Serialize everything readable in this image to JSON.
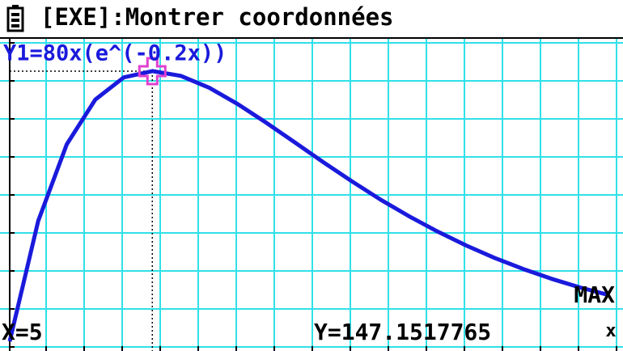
{
  "header": {
    "title": "[EXE]:Montrer coordonnées"
  },
  "chart_data": {
    "type": "line",
    "function_label": "Y1=80x(e^(-0.2x))",
    "mode_label": "MAX",
    "x_label": "x",
    "x": [
      0,
      1,
      2,
      3,
      4,
      5,
      6,
      7,
      8,
      9,
      10,
      11,
      12,
      13,
      14,
      15,
      16,
      17,
      18,
      19,
      20,
      21
    ],
    "values": [
      0,
      65.5,
      107.3,
      131.7,
      143.8,
      147.2,
      144.6,
      138.1,
      129.2,
      119.0,
      108.3,
      97.5,
      87.1,
      77.2,
      68.1,
      59.8,
      52.2,
      45.4,
      39.4,
      34.0,
      29.3,
      25.2
    ],
    "color": "#1a1adc",
    "xlim": [
      -0.34,
      21.5
    ],
    "ylim": [
      -5.3,
      164.8
    ],
    "grid": true,
    "cursor": {
      "x": 5,
      "y": 147.1517765,
      "x_label": "X=5",
      "y_label": "Y=147.1517765",
      "color": "#e040d0"
    }
  }
}
